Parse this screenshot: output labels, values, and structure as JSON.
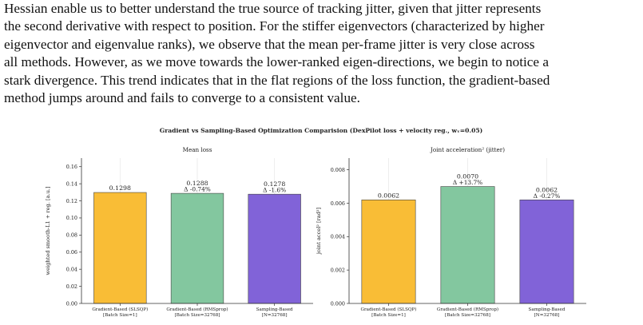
{
  "paragraph": {
    "lines": [
      "Hessian enable us to better understand the true source of tracking jitter, given that jitter represents",
      "the second derivative with respect to position. For the stiffer eigenvectors (characterized by higher",
      "eigenvector and eigenvalue ranks), we observe that the mean per-frame jitter is very close across",
      "all methods. However, as we move towards the lower-ranked eigen-directions, we begin to notice a",
      "stark divergence. This trend indicates that in the flat regions of the loss function, the gradient-based",
      "method jumps around and fails to converge to a consistent value."
    ]
  },
  "figure": {
    "suptitle": "Gradient vs Sampling-Based Optimization Comparision (DexPilot loss + velocity reg., wᵥ=0.05)"
  },
  "chart_data": [
    {
      "type": "bar",
      "title": "Mean loss",
      "ylabel": "weighted smooth-L1 + reg. [a.u.]",
      "xlabel": "",
      "ylim": [
        0,
        0.17
      ],
      "yticks": [
        "0.00",
        "0.02",
        "0.04",
        "0.06",
        "0.08",
        "0.10",
        "0.12",
        "0.14",
        "0.16"
      ],
      "categories": [
        [
          "Gradient-Based (SLSQP)",
          "[Batch Size=1]"
        ],
        [
          "Gradient-Based (RMSprop)",
          "[Batch Size=32768]"
        ],
        [
          "Sampling-Based",
          "[N=32768]"
        ]
      ],
      "values": [
        0.1298,
        0.1288,
        0.1278
      ],
      "value_labels": [
        "0.1298",
        "0.1288",
        "0.1278"
      ],
      "delta_labels": [
        "",
        "Δ -0.74%",
        "Δ -1.6%"
      ],
      "colors": [
        "#f9bd36",
        "#83c79f",
        "#8163d8"
      ],
      "grid": "vertical"
    },
    {
      "type": "bar",
      "title": "Joint acceleration² (jitter)",
      "ylabel": "joint accel² [rad²]",
      "xlabel": "",
      "ylim": [
        0,
        0.0087
      ],
      "yticks": [
        "0.000",
        "0.002",
        "0.004",
        "0.006",
        "0.008"
      ],
      "categories": [
        [
          "Gradient-Based (SLSQP)",
          "[Batch Size=1]"
        ],
        [
          "Gradient-Based (RMSprop)",
          "[Batch Size=32768]"
        ],
        [
          "Sampling-Based",
          "[N=32768]"
        ]
      ],
      "values": [
        0.0062,
        0.007,
        0.0062
      ],
      "value_labels": [
        "0.0062",
        "0.0070",
        "0.0062"
      ],
      "delta_labels": [
        "",
        "Δ +13.7%",
        "Δ -0.27%"
      ],
      "colors": [
        "#f9bd36",
        "#83c79f",
        "#8163d8"
      ],
      "grid": "vertical"
    }
  ]
}
